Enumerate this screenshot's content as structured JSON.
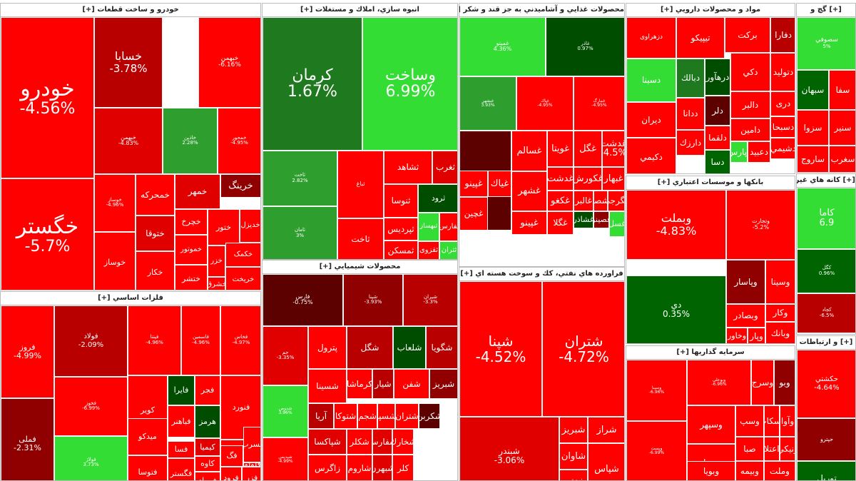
{
  "colors": {
    "r1": "#ff0000",
    "r2": "#e00000",
    "r3": "#b80000",
    "r4": "#900000",
    "r5": "#5c0000",
    "g1": "#1f7a1f",
    "g2": "#2e9e2e",
    "g3": "#33dd33",
    "g4": "#006400",
    "g5": "#004d00"
  },
  "sectors": [
    {
      "title": "خودرو و ساخت قطعات [+]",
      "tiles": [
        {
          "name": "خودرو",
          "pct": "-4.56%",
          "c": "r1"
        },
        {
          "name": "خگستر",
          "pct": "-5.7%",
          "c": "r1"
        },
        {
          "name": "خسابا",
          "pct": "-3.78%",
          "c": "r3"
        },
        {
          "name": "خبهمن",
          "pct": "-6.16%",
          "c": "r1"
        },
        {
          "name": "خبهمن",
          "pct": "-4.83%",
          "c": "r2"
        },
        {
          "name": "خاذين",
          "pct": "2.28%",
          "c": "g2"
        },
        {
          "name": "خمحور",
          "pct": "-4.95%",
          "c": "r1"
        },
        {
          "name": "خرينگ",
          "pct": "",
          "c": "r4"
        },
        {
          "name": "خمهر",
          "pct": "",
          "c": "r2"
        },
        {
          "name": "خمحركه",
          "pct": "",
          "c": "r1"
        },
        {
          "name": "خوساز",
          "pct": "-4.96%",
          "c": "r1"
        },
        {
          "name": "خچرخ",
          "pct": "",
          "c": "r1"
        },
        {
          "name": "خدیزل",
          "pct": "",
          "c": "r1"
        },
        {
          "name": "ختوقا",
          "pct": "",
          "c": "r2"
        },
        {
          "name": "ختور",
          "pct": "",
          "c": "r1"
        },
        {
          "name": "خموتور",
          "pct": "",
          "c": "r1"
        },
        {
          "name": "خزر",
          "pct": "",
          "c": "r1"
        },
        {
          "name": "خکمک",
          "pct": "",
          "c": "r1"
        },
        {
          "name": "خوساز",
          "pct": "",
          "c": "r1"
        },
        {
          "name": "خكار",
          "pct": "",
          "c": "r1"
        },
        {
          "name": "ختشر",
          "pct": "",
          "c": "r1"
        },
        {
          "name": "خشرق",
          "pct": "",
          "c": "r1"
        },
        {
          "name": "خريخت",
          "pct": "",
          "c": "r1"
        }
      ]
    },
    {
      "title": "فلزات اساسي [+]",
      "tiles": [
        {
          "name": "فروز",
          "pct": "-4.99%",
          "c": "r1"
        },
        {
          "name": "فملی",
          "pct": "-2.31%",
          "c": "r4"
        },
        {
          "name": "فولاد",
          "pct": "-2.09%",
          "c": "r3"
        },
        {
          "name": "فخوز",
          "pct": "-6.99%",
          "c": "r1"
        },
        {
          "name": "فپنتا",
          "pct": "-4.96%",
          "c": "r1"
        },
        {
          "name": "فاسمين",
          "pct": "-4.96%",
          "c": "r1"
        },
        {
          "name": "فخاس",
          "pct": "-4.97%",
          "c": "r1"
        },
        {
          "name": "فولاژ",
          "pct": "3.73%",
          "c": "g3"
        },
        {
          "name": "كوير",
          "pct": "",
          "c": "r1"
        },
        {
          "name": "فايرا",
          "pct": "",
          "c": "g5"
        },
        {
          "name": "فجر",
          "pct": "",
          "c": "r1"
        },
        {
          "name": "فنورد",
          "pct": "",
          "c": "r1"
        },
        {
          "name": "ميدكو",
          "pct": "",
          "c": "r1"
        },
        {
          "name": "فباهنر",
          "pct": "",
          "c": "r1"
        },
        {
          "name": "هرمز",
          "pct": "",
          "c": "g5"
        },
        {
          "name": "فنوال",
          "pct": "",
          "c": "r1"
        },
        {
          "name": "فسرب",
          "pct": "",
          "c": "r1"
        },
        {
          "name": "فتوسا",
          "pct": "",
          "c": "r1"
        },
        {
          "name": "فسا",
          "pct": "",
          "c": "r1"
        },
        {
          "name": "كيميا",
          "pct": "",
          "c": "r2"
        },
        {
          "name": "فگستر",
          "pct": "",
          "c": "r1"
        },
        {
          "name": "كاوه",
          "pct": "",
          "c": "r1"
        },
        {
          "name": "فمراد",
          "pct": "",
          "c": "r1"
        },
        {
          "name": "فرود",
          "pct": "",
          "c": "r1"
        },
        {
          "name": "فزر",
          "pct": "",
          "c": "r1"
        },
        {
          "name": "فلوله",
          "pct": "",
          "c": "r1"
        },
        {
          "name": "فگ",
          "pct": "",
          "c": "r1"
        }
      ]
    },
    {
      "title": "انبوه سازي، املاك و مستغلات [+]",
      "tiles": [
        {
          "name": "كرمان",
          "pct": "1.67%",
          "c": "g1"
        },
        {
          "name": "وساخت",
          "pct": "6.99%",
          "c": "g3"
        },
        {
          "name": "ثاخت",
          "pct": "2.82%",
          "c": "g2"
        },
        {
          "name": "ثامان",
          "pct": "3%",
          "c": "g2"
        },
        {
          "name": "ثباغ",
          "pct": "",
          "c": "r1"
        },
        {
          "name": "ثشاهد",
          "pct": "",
          "c": "r1"
        },
        {
          "name": "ثغرب",
          "pct": "",
          "c": "r2"
        },
        {
          "name": "ثنوسا",
          "pct": "",
          "c": "r1"
        },
        {
          "name": "ثرود",
          "pct": "",
          "c": "g5"
        },
        {
          "name": "ثاخت",
          "pct": "",
          "c": "r1"
        },
        {
          "name": "ثپردیس",
          "pct": "",
          "c": "r1"
        },
        {
          "name": "ثبهساز",
          "pct": "",
          "c": "g3"
        },
        {
          "name": "ثمسكن",
          "pct": "",
          "c": "r1"
        },
        {
          "name": "ثقزوی",
          "pct": "",
          "c": "r1"
        },
        {
          "name": "ثفارس",
          "pct": "",
          "c": "r1"
        },
        {
          "name": "ثتران",
          "pct": "",
          "c": "g3"
        }
      ]
    },
    {
      "title": "محصولات شيميايي [+]",
      "tiles": [
        {
          "name": "فارس",
          "pct": "-0.75%",
          "c": "r5"
        },
        {
          "name": "شپنا",
          "pct": "-3.93%",
          "c": "r4"
        },
        {
          "name": "شيران",
          "pct": "-3.3%",
          "c": "r3"
        },
        {
          "name": "جم",
          "pct": "-3.35%",
          "c": "r2"
        },
        {
          "name": "پترول",
          "pct": "",
          "c": "r1"
        },
        {
          "name": "شگل",
          "pct": "",
          "c": "r3"
        },
        {
          "name": "شلعاب",
          "pct": "",
          "c": "g5"
        },
        {
          "name": "شگويا",
          "pct": "",
          "c": "r3"
        },
        {
          "name": "شدوص",
          "pct": "3.96%",
          "c": "g3"
        },
        {
          "name": "شسينا",
          "pct": "",
          "c": "r1"
        },
        {
          "name": "كرماشا",
          "pct": "",
          "c": "r1"
        },
        {
          "name": "شيار",
          "pct": "",
          "c": "r3"
        },
        {
          "name": "شفن",
          "pct": "",
          "c": "r1"
        },
        {
          "name": "شبريز",
          "pct": "",
          "c": "r4"
        },
        {
          "name": "آريا",
          "pct": "",
          "c": "r3"
        },
        {
          "name": "شتوكا",
          "pct": "",
          "c": "r1"
        },
        {
          "name": "شجم",
          "pct": "",
          "c": "r1"
        },
        {
          "name": "شسپا",
          "pct": "",
          "c": "r1"
        },
        {
          "name": "شتران",
          "pct": "",
          "c": "r1"
        },
        {
          "name": "شكربن",
          "pct": "",
          "c": "r5"
        },
        {
          "name": "شپديس",
          "pct": "-4.99%",
          "c": "r1"
        },
        {
          "name": "شپاكسا",
          "pct": "",
          "c": "r2"
        },
        {
          "name": "شكلر",
          "pct": "",
          "c": "r1"
        },
        {
          "name": "شفارس",
          "pct": "",
          "c": "r2"
        },
        {
          "name": "شخارك",
          "pct": "",
          "c": "r1"
        },
        {
          "name": "زاگرس",
          "pct": "",
          "c": "r1"
        },
        {
          "name": "شاروم",
          "pct": "",
          "c": "r1"
        },
        {
          "name": "شبهرن",
          "pct": "",
          "c": "r2"
        },
        {
          "name": "كلر",
          "pct": "",
          "c": "r1"
        }
      ]
    },
    {
      "title": "محصولات غذايي و آشاميدني به جز قند و شكر [+]",
      "tiles": [
        {
          "name": "غمينو",
          "pct": "4.36%",
          "c": "g3"
        },
        {
          "name": "غاذر",
          "pct": "0.97%",
          "c": "g5"
        },
        {
          "name": "غبشهر",
          "pct": "3.93%",
          "c": "g2"
        },
        {
          "name": "غپاك",
          "pct": "-4.95%",
          "c": "r1"
        },
        {
          "name": "غمارگ",
          "pct": "-4.95%",
          "c": "r1"
        },
        {
          "name": "غصينو",
          "pct": "-0.46%",
          "c": "r5"
        },
        {
          "name": "غسالم",
          "pct": "",
          "c": "r1"
        },
        {
          "name": "غويتا",
          "pct": "",
          "c": "r1"
        },
        {
          "name": "غگل",
          "pct": "",
          "c": "r1"
        },
        {
          "name": "غدشت",
          "pct": "-4.5%",
          "c": "r1"
        },
        {
          "name": "غشهر",
          "pct": "",
          "c": "r1"
        },
        {
          "name": "غدشت",
          "pct": "",
          "c": "r1"
        },
        {
          "name": "غكورش",
          "pct": "",
          "c": "r1"
        },
        {
          "name": "غبهار",
          "pct": "",
          "c": "r1"
        },
        {
          "name": "غپينو",
          "pct": "",
          "c": "r1"
        },
        {
          "name": "غياك",
          "pct": "",
          "c": "r1"
        },
        {
          "name": "غكغو",
          "pct": "",
          "c": "r1"
        },
        {
          "name": "غالبر",
          "pct": "",
          "c": "r1"
        },
        {
          "name": "غشصفا",
          "pct": "",
          "c": "r1"
        },
        {
          "name": "غگرجي",
          "pct": "",
          "c": "r1"
        },
        {
          "name": "غشاذر",
          "pct": "",
          "c": "g5"
        },
        {
          "name": "غصينو",
          "pct": "",
          "c": "r4"
        },
        {
          "name": "غپینو",
          "pct": "",
          "c": "r1"
        },
        {
          "name": "غگلا",
          "pct": "",
          "c": "r1"
        },
        {
          "name": "غچين",
          "pct": "",
          "c": "r1"
        },
        {
          "name": "غسل",
          "pct": "",
          "c": "g3"
        }
      ]
    },
    {
      "title": "فراورده هاي نفتي، كك و سوخت هسته اي [+]",
      "tiles": [
        {
          "name": "شپنا",
          "pct": "-4.52%",
          "c": "r1"
        },
        {
          "name": "شتران",
          "pct": "-4.72%",
          "c": "r1"
        },
        {
          "name": "شبندر",
          "pct": "-3.06%",
          "c": "r2"
        },
        {
          "name": "شبريز",
          "pct": "",
          "c": "r1"
        },
        {
          "name": "شاوان",
          "pct": "",
          "c": "r1"
        },
        {
          "name": "شراز",
          "pct": "",
          "c": "r1"
        },
        {
          "name": "شنفت",
          "pct": "",
          "c": "r1"
        },
        {
          "name": "شپاس",
          "pct": "",
          "c": "r1"
        }
      ]
    },
    {
      "title": "مواد و محصولات دارويي [+]",
      "tiles": [
        {
          "name": "دزهراوی",
          "pct": "",
          "c": "r1"
        },
        {
          "name": "تيپيكو",
          "pct": "",
          "c": "r1"
        },
        {
          "name": "بركت",
          "pct": "",
          "c": "r1"
        },
        {
          "name": "دفارا",
          "pct": "",
          "c": "r3"
        },
        {
          "name": "دسينا",
          "pct": "",
          "c": "g3"
        },
        {
          "name": "دبالك",
          "pct": "",
          "c": "g1"
        },
        {
          "name": "درهآور",
          "pct": "",
          "c": "g5"
        },
        {
          "name": "دكي",
          "pct": "",
          "c": "r1"
        },
        {
          "name": "دتوليد",
          "pct": "",
          "c": "r1"
        },
        {
          "name": "ديران",
          "pct": "",
          "c": "r1"
        },
        {
          "name": "ددانا",
          "pct": "",
          "c": "r1"
        },
        {
          "name": "دلر",
          "pct": "",
          "c": "r5"
        },
        {
          "name": "دالبر",
          "pct": "",
          "c": "r1"
        },
        {
          "name": "درى",
          "pct": "",
          "c": "r1"
        },
        {
          "name": "دكيمي",
          "pct": "",
          "c": "r1"
        },
        {
          "name": "دارزك",
          "pct": "",
          "c": "r1"
        },
        {
          "name": "دلقما",
          "pct": "",
          "c": "r1"
        },
        {
          "name": "دامين",
          "pct": "",
          "c": "r1"
        },
        {
          "name": "دسبحا",
          "pct": "",
          "c": "r1"
        },
        {
          "name": "دسا",
          "pct": "",
          "c": "g4"
        },
        {
          "name": "دپارس",
          "pct": "",
          "c": "g3"
        },
        {
          "name": "دعبيد",
          "pct": "",
          "c": "r1"
        },
        {
          "name": "دشيمي",
          "pct": "",
          "c": "r1"
        }
      ]
    },
    {
      "title": "بانكها و موسسات اعتباري [+]",
      "tiles": [
        {
          "name": "وبملت",
          "pct": "-4.83%",
          "c": "r1"
        },
        {
          "name": "وتجارت",
          "pct": "-5.2%",
          "c": "r1"
        },
        {
          "name": "دي",
          "pct": "0.35%",
          "c": "g4"
        },
        {
          "name": "وپاسار",
          "pct": "",
          "c": "r4"
        },
        {
          "name": "وسينا",
          "pct": "",
          "c": "r1"
        },
        {
          "name": "وبصادر",
          "pct": "",
          "c": "r1"
        },
        {
          "name": "وكار",
          "pct": "",
          "c": "r1"
        },
        {
          "name": "وپار",
          "pct": "",
          "c": "r1"
        },
        {
          "name": "وبانك",
          "pct": "",
          "c": "r1"
        },
        {
          "name": "وخاور",
          "pct": "",
          "c": "r1"
        }
      ]
    },
    {
      "title": "سرمايه گذاريها [+]",
      "tiles": [
        {
          "name": "وسينا",
          "pct": "-6.96%",
          "c": "r1"
        },
        {
          "name": "وبوعلی",
          "pct": "-6.96%",
          "c": "r1"
        },
        {
          "name": "وسرج",
          "pct": "",
          "c": "r1"
        },
        {
          "name": "وبو",
          "pct": "",
          "c": "r4"
        },
        {
          "name": "وپست",
          "pct": "-6.99%",
          "c": "r1"
        },
        {
          "name": "وسپهر",
          "pct": "",
          "c": "r1"
        },
        {
          "name": "وسپ",
          "pct": "",
          "c": "r1"
        },
        {
          "name": "وسكاب",
          "pct": "",
          "c": "r1"
        },
        {
          "name": "وآوا",
          "pct": "",
          "c": "r1"
        },
        {
          "name": "وسبحان",
          "pct": "",
          "c": "r1"
        },
        {
          "name": "صبا",
          "pct": "",
          "c": "r1"
        },
        {
          "name": "اعتلا",
          "pct": "",
          "c": "r1"
        },
        {
          "name": "ونيكي",
          "pct": "",
          "c": "r1"
        },
        {
          "name": "وبويا",
          "pct": "",
          "c": "r1"
        },
        {
          "name": "وبيمه",
          "pct": "",
          "c": "r1"
        },
        {
          "name": "وملت",
          "pct": "",
          "c": "r1"
        }
      ]
    },
    {
      "title": "[+] گچ و",
      "tiles": [
        {
          "name": "سصوفي",
          "pct": "5%",
          "c": "g3"
        },
        {
          "name": "سبهان",
          "pct": "",
          "c": "g4"
        },
        {
          "name": "سفا",
          "pct": "",
          "c": "r1"
        },
        {
          "name": "سزوا",
          "pct": "",
          "c": "r1"
        },
        {
          "name": "سنير",
          "pct": "",
          "c": "r1"
        },
        {
          "name": "ساروج",
          "pct": "",
          "c": "r1"
        },
        {
          "name": "سغرب",
          "pct": "",
          "c": "r1"
        }
      ]
    },
    {
      "title": "[+] كانه هاي غيرفلزي",
      "tiles": [
        {
          "name": "كاما",
          "pct": "6.9",
          "c": "g3"
        },
        {
          "name": "كگل",
          "pct": "0.96%",
          "c": "g4"
        },
        {
          "name": "كچاد",
          "pct": "-6.5%",
          "c": "r3"
        },
        {
          "name": "كلوند",
          "pct": "",
          "c": "r1"
        }
      ]
    },
    {
      "title": "[+] و ارتباطات",
      "tiles": [
        {
          "name": "حكشتي",
          "pct": "-4.64%",
          "c": "r1"
        },
        {
          "name": "حپترو",
          "pct": "",
          "c": "r4"
        },
        {
          "name": "توريل",
          "pct": "",
          "c": "g4"
        }
      ]
    }
  ]
}
